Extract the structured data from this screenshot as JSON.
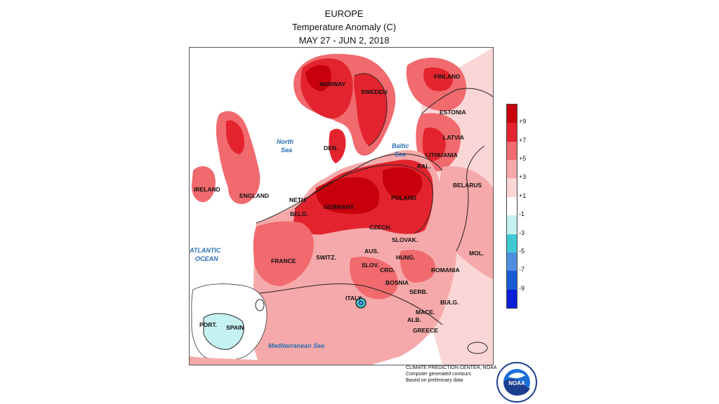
{
  "title": {
    "region": "EUROPE",
    "variable": "Temperature Anomaly (C)",
    "period": "MAY 27 - JUN 2, 2018"
  },
  "legend": {
    "ticks": [
      "+9",
      "+7",
      "+5",
      "+3",
      "+1",
      "-1",
      "-3",
      "-5",
      "-7",
      "-9"
    ],
    "colors": [
      "#c8000c",
      "#e3242e",
      "#f06a6e",
      "#f6a9aa",
      "#fbd6d6",
      "#ffffff",
      "#c6f1f1",
      "#3fc9d3",
      "#4d8ee0",
      "#1a5ad6",
      "#0b1fd8"
    ]
  },
  "countries": {
    "norway": "NORWAY",
    "sweden": "SWEDEN",
    "finland": "FINLAND",
    "estonia": "ESTONIA",
    "latvia": "LATVIA",
    "lithuania": "LITHUANIA",
    "belarus": "BELARUS",
    "den": "DEN.",
    "ireland": "IRELAND",
    "england": "ENGLAND",
    "neth": "NETH.",
    "belg": "BELG.",
    "germany": "GERMANY",
    "poland": "POLAND",
    "czech": "CZECH.",
    "slovak": "SLOVAK.",
    "aus": "AUS.",
    "switz": "SWITZ.",
    "france": "FRANCE",
    "hung": "HUNG.",
    "slov": "SLOV.",
    "cro": "CRO.",
    "romania": "ROMANIA",
    "mol": "MOL.",
    "bosnia": "BOSNIA",
    "serb": "SERB.",
    "bulg": "BULG.",
    "mace": "MACE.",
    "alb": "ALB.",
    "greece": "GREECE",
    "italy": "ITALY",
    "spain": "SPAIN",
    "port": "PORT.",
    "ral": "RAL."
  },
  "seas": {
    "north": "North\nSea",
    "north_1": "North",
    "north_2": "Sea",
    "baltic_1": "Baltic",
    "baltic_2": "Sea",
    "atlantic_1": "ATLANTIC",
    "atlantic_2": "OCEAN",
    "med": "Mediterranean Sea"
  },
  "credits": {
    "line1": "CLIMATE PREDICTION CENTER, NOAA",
    "line2": "Computer generated contours",
    "line3": "Based on preliminary data"
  },
  "logo": {
    "text": "NOAA",
    "ring_top": "NATIONAL OCEANIC AND ATMOSPHERIC ADMINISTRATION",
    "ring_bottom": "U.S. DEPARTMENT OF COMMERCE"
  }
}
